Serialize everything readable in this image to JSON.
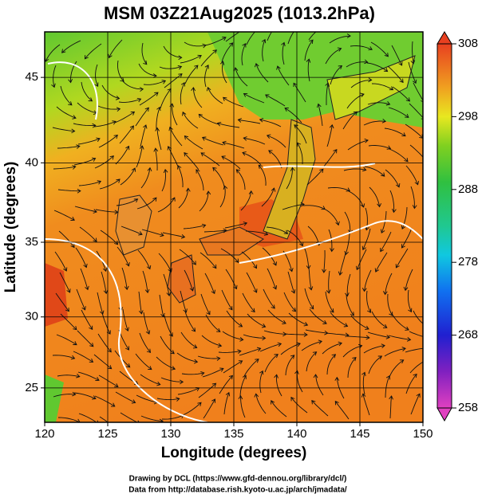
{
  "chart_data": {
    "type": "map",
    "title": "MSM 03Z21Aug2025 (1013.2hPa)",
    "x_label": "Longitude (degrees)",
    "y_label": "Latitude  (degrees)",
    "projection": "mercator",
    "xlim": [
      120,
      150
    ],
    "ylim": [
      22.5,
      47.5
    ],
    "xticks": [
      120,
      125,
      130,
      135,
      140,
      145,
      150
    ],
    "yticks": [
      25,
      30,
      35,
      40,
      45
    ],
    "grid": true,
    "colorbar": {
      "clim": [
        258,
        308
      ],
      "ticks": [
        258,
        268,
        278,
        288,
        298,
        308
      ]
    },
    "footer": [
      "Drawing by DCL (https://www.gfd-dennou.org/library/dcl/)",
      "Data from http://database.rish.kyoto-u.ac.jp/arch/jmadata/"
    ]
  }
}
